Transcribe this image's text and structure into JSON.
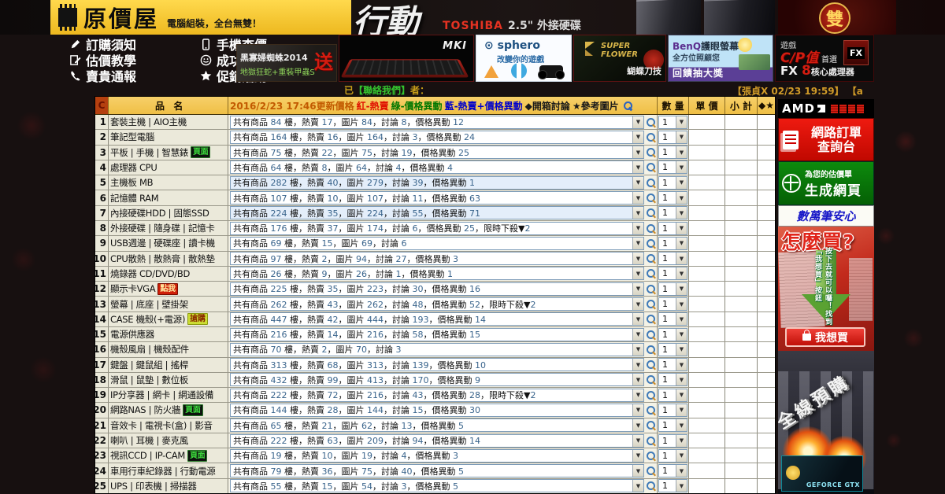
{
  "banner": {
    "site_title": "原價屋",
    "site_subtitle": "電腦組裝，全台無雙！",
    "action": "行動",
    "toshiba_brand": "TOSHIBA",
    "toshiba_text": "2.5\" 外接硬碟",
    "double_char": "雙"
  },
  "nav": {
    "items": [
      {
        "id": "order-notes",
        "label": "訂購須知"
      },
      {
        "id": "phone-price",
        "label": "手機查價"
      },
      {
        "id": "quote-teach",
        "label": "估價教學"
      },
      {
        "id": "success-cases",
        "label": "成功案例"
      },
      {
        "id": "report-expensive",
        "label": "賣貴通報"
      },
      {
        "id": "promo-events",
        "label": "促銷活動"
      }
    ]
  },
  "ads": {
    "spider": {
      "line1": "黑寡婦蜘蛛2014",
      "line2": "地獄狂蛇+重裝甲蟲S",
      "badge": "送"
    },
    "keyboard": {
      "label": "MKI"
    },
    "sphero": {
      "brand": "sphero",
      "tagline": "改變你的遊戲"
    },
    "superflower": {
      "brand": "SUPER FLOWER",
      "tagline": "蝴蝶刀技"
    },
    "benq": {
      "line1": "BenQ",
      "line1b": "護眼螢幕",
      "line2": "全方位照顧您",
      "line3": "回饋抽大獎"
    },
    "fx": {
      "top": "遊戲",
      "big": "C/P值",
      "sub": "首選",
      "brand": "FX",
      "num": "8",
      "suffix": "核心處理器"
    }
  },
  "contact": {
    "prefix": "已",
    "link": "【聯絡我們】",
    "suffix": "者：",
    "ticker": "【張貞X 02/23 19:59】 【a"
  },
  "table": {
    "header": {
      "corner": "C",
      "name": "品　名",
      "updated": "2016/2/23 17:46更新價格",
      "legend_red": "紅-熱賣",
      "legend_green": "綠-價格異動",
      "legend_blue": "藍-熱賣+價格異動",
      "legend_box": "◆開箱討論",
      "legend_pic": "★參考圖片",
      "qty": "數 量",
      "unit": "單 價",
      "subtotal": "小 計",
      "fav": "◆★"
    },
    "rows": [
      {
        "num": "1",
        "name": "套裝主機 | AIO主機",
        "badge": "",
        "badge_type": "",
        "desc": "共有商品 84 樓，熱賣 17，圖片 84，討論 8，價格異動 12",
        "qty": "1"
      },
      {
        "num": "2",
        "name": "筆記型電腦",
        "badge": "",
        "badge_type": "",
        "desc": "共有商品 164 樓，熱賣 16，圖片 164，討論 3，價格異動 24",
        "qty": "1"
      },
      {
        "num": "3",
        "name": "平板 | 手機 | 智慧錶",
        "badge": "頁面",
        "badge_type": "page",
        "desc": "共有商品 75 樓，熱賣 22，圖片 75，討論 19，價格異動 25",
        "qty": "1"
      },
      {
        "num": "4",
        "name": "處理器 CPU",
        "badge": "",
        "badge_type": "",
        "desc": "共有商品 64 樓，熱賣 8，圖片 64，討論 4，價格異動 4",
        "qty": "1"
      },
      {
        "num": "5",
        "name": "主機板 MB",
        "badge": "",
        "badge_type": "",
        "desc": "共有商品 282 樓，熱賣 40，圖片 279，討論 39，價格異動 1",
        "qty": "1",
        "hl": true
      },
      {
        "num": "6",
        "name": "記憶體 RAM",
        "badge": "",
        "badge_type": "",
        "desc": "共有商品 107 樓，熱賣 10，圖片 107，討論 11，價格異動 63",
        "qty": "1"
      },
      {
        "num": "7",
        "name": "內接硬碟HDD | 固態SSD",
        "badge": "",
        "badge_type": "",
        "desc": "共有商品 224 樓，熱賣 35，圖片 224，討論 55，價格異動 71",
        "qty": "1",
        "hl": true
      },
      {
        "num": "8",
        "name": "外接硬碟 | 隨身碟 | 記憶卡",
        "badge": "",
        "badge_type": "",
        "desc": "共有商品 176 樓，熱賣 37，圖片 174，討論 6，價格異動 25，限時下殺▼2",
        "qty": "1"
      },
      {
        "num": "9",
        "name": "USB週邊 | 硬碟座 | 讀卡機",
        "badge": "",
        "badge_type": "",
        "desc": "共有商品 69 樓，熱賣 15，圖片 69，討論 6",
        "qty": "1"
      },
      {
        "num": "10",
        "name": "CPU散熱 | 散熱膏 | 散熱墊",
        "badge": "",
        "badge_type": "",
        "desc": "共有商品 97 樓，熱賣 2，圖片 94，討論 27，價格異動 3",
        "qty": "1"
      },
      {
        "num": "11",
        "name": "燒錄器 CD/DVD/BD",
        "badge": "",
        "badge_type": "",
        "desc": "共有商品 26 樓，熱賣 9，圖片 26，討論 1，價格異動 1",
        "qty": "1"
      },
      {
        "num": "12",
        "name": "顯示卡VGA",
        "badge": "點我",
        "badge_type": "click",
        "desc": "共有商品 225 樓，熱賣 35，圖片 223，討論 30，價格異動 16",
        "qty": "1"
      },
      {
        "num": "13",
        "name": "螢幕 | 底座 | 壁掛架",
        "badge": "",
        "badge_type": "",
        "desc": "共有商品 262 樓，熱賣 43，圖片 262，討論 48，價格異動 52，限時下殺▼2",
        "qty": "1"
      },
      {
        "num": "14",
        "name": "CASE 機殼(+電源)",
        "badge": "搶購",
        "badge_type": "rush",
        "desc": "共有商品 447 樓，熱賣 42，圖片 444，討論 193，價格異動 14",
        "qty": "1"
      },
      {
        "num": "15",
        "name": "電源供應器",
        "badge": "",
        "badge_type": "",
        "desc": "共有商品 216 樓，熱賣 14，圖片 216，討論 58，價格異動 15",
        "qty": "1"
      },
      {
        "num": "16",
        "name": "機殼風扇 | 機殼配件",
        "badge": "",
        "badge_type": "",
        "desc": "共有商品 70 樓，熱賣 2，圖片 70，討論 3",
        "qty": "1"
      },
      {
        "num": "17",
        "name": "鍵盤 | 鍵鼠組 | 搖桿",
        "badge": "",
        "badge_type": "",
        "desc": "共有商品 313 樓，熱賣 68，圖片 313，討論 139，價格異動 10",
        "qty": "1"
      },
      {
        "num": "18",
        "name": "滑鼠 | 鼠墊 | 數位板",
        "badge": "",
        "badge_type": "",
        "desc": "共有商品 432 樓，熱賣 99，圖片 413，討論 170，價格異動 9",
        "qty": "1"
      },
      {
        "num": "19",
        "name": "IP分享器 | 網卡 | 網通設備",
        "badge": "",
        "badge_type": "",
        "desc": "共有商品 222 樓，熱賣 72，圖片 216，討論 43，價格異動 28，限時下殺▼2",
        "qty": "1"
      },
      {
        "num": "20",
        "name": "網路NAS | 防火牆",
        "badge": "頁面",
        "badge_type": "page",
        "desc": "共有商品 144 樓，熱賣 28，圖片 144，討論 15，價格異動 30",
        "qty": "1"
      },
      {
        "num": "21",
        "name": "音效卡 | 電視卡(盒) | 影音",
        "badge": "",
        "badge_type": "",
        "desc": "共有商品 65 樓，熱賣 21，圖片 62，討論 13，價格異動 5",
        "qty": "1"
      },
      {
        "num": "22",
        "name": "喇叭 | 耳機 | 麥克風",
        "badge": "",
        "badge_type": "",
        "desc": "共有商品 222 樓，熱賣 63，圖片 209，討論 94，價格異動 14",
        "qty": "1"
      },
      {
        "num": "23",
        "name": "視訊CCD | IP-CAM",
        "badge": "頁面",
        "badge_type": "page",
        "desc": "共有商品 19 樓，熱賣 10，圖片 19，討論 4，價格異動 3",
        "qty": "1"
      },
      {
        "num": "24",
        "name": "車用行車紀錄器 | 行動電源",
        "badge": "",
        "badge_type": "",
        "desc": "共有商品 79 樓，熱賣 36，圖片 75，討論 40，價格異動 5",
        "qty": "1"
      },
      {
        "num": "25",
        "name": "UPS | 印表機 | 掃描器",
        "badge": "",
        "badge_type": "",
        "desc": "共有商品 55 樓，熱賣 15，圖片 54，討論 3，價格異動 5",
        "qty": "1"
      }
    ]
  },
  "sidebar": {
    "amd": "AMD",
    "order_button": {
      "line1": "網路訂單",
      "line2": "查詢台"
    },
    "web_button": {
      "line1": "為您的估價單",
      "line2": "生成網頁"
    },
    "trust": "數萬筆安心",
    "howto": {
      "title": "怎麼買?",
      "arrow_text": "按下去就可以囉！找到「我想買」按鈕",
      "buy_label": "我想買"
    },
    "gtx": {
      "title": "全線預購",
      "product": "GEFORCE GTX"
    }
  },
  "colors": {
    "header_gold": "#f0c14e",
    "legend_red": "#e01000",
    "legend_green": "#007700",
    "legend_blue": "#0000cc",
    "amd_red": "#dd0000",
    "button_green": "#067806"
  }
}
